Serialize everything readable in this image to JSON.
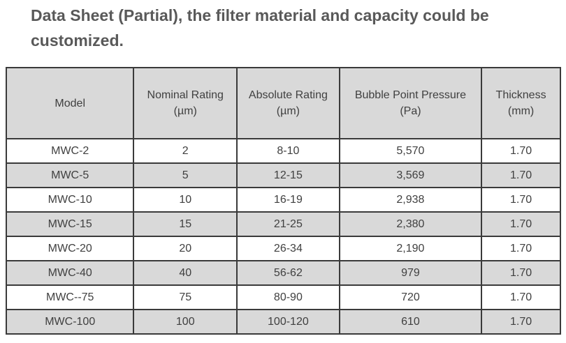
{
  "title": "Data Sheet (Partial), the filter material and capacity could be customized.",
  "table": {
    "header": [
      [
        "Model"
      ],
      [
        "Nominal Rating",
        "(µm)"
      ],
      [
        "Absolute Rating",
        "(µm)"
      ],
      [
        "Bubble Point Pressure",
        "(Pa)"
      ],
      [
        "Thickness",
        "(mm)"
      ]
    ],
    "rows": [
      [
        "MWC-2",
        "2",
        "8-10",
        "5,570",
        "1.70"
      ],
      [
        "MWC-5",
        "5",
        "12-15",
        "3,569",
        "1.70"
      ],
      [
        "MWC-10",
        "10",
        "16-19",
        "2,938",
        "1.70"
      ],
      [
        "MWC-15",
        "15",
        "21-25",
        "2,380",
        "1.70"
      ],
      [
        "MWC-20",
        "20",
        "26-34",
        "2,190",
        "1.70"
      ],
      [
        "MWC-40",
        "40",
        "56-62",
        "979",
        "1.70"
      ],
      [
        "MWC--75",
        "75",
        "80-90",
        "720",
        "1.70"
      ],
      [
        "MWC-100",
        "100",
        "100-120",
        "610",
        "1.70"
      ]
    ]
  }
}
